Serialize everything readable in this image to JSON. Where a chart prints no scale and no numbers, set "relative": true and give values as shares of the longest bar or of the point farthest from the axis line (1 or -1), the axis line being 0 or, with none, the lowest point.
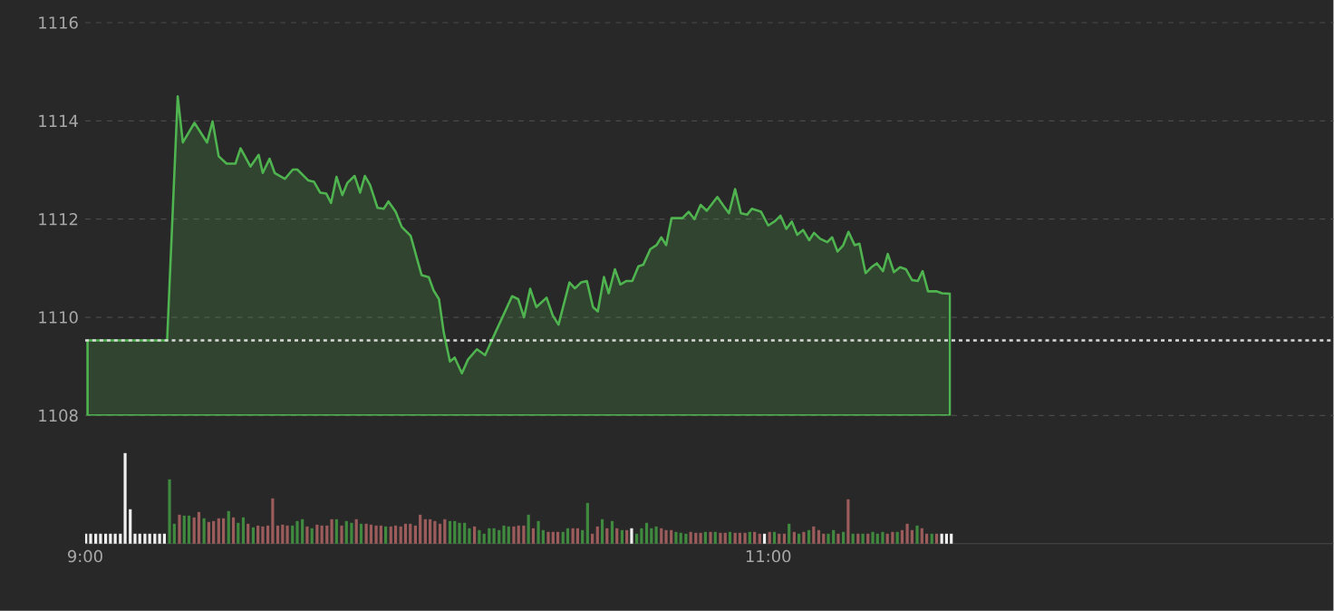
{
  "chart_data": [
    {
      "type": "area",
      "xlim": [
        9,
        12.655
      ],
      "tick_labels": "y",
      "ylim": [
        1108,
        1116
      ],
      "yticks": [
        1108,
        1110,
        1112,
        1114,
        1116
      ],
      "grid": "y",
      "x": [
        9.007,
        9.24,
        9.271,
        9.286,
        9.32,
        9.357,
        9.373,
        9.391,
        9.414,
        9.44,
        9.455,
        9.484,
        9.508,
        9.52,
        9.54,
        9.555,
        9.585,
        9.608,
        9.621,
        9.653,
        9.67,
        9.688,
        9.706,
        9.72,
        9.736,
        9.753,
        9.768,
        9.789,
        9.805,
        9.819,
        9.834,
        9.856,
        9.874,
        9.888,
        9.909,
        9.927,
        9.953,
        9.985,
        10.006,
        10.02,
        10.036,
        10.05,
        10.068,
        10.082,
        10.103,
        10.121,
        10.147,
        10.171,
        10.201,
        10.25,
        10.268,
        10.285,
        10.303,
        10.321,
        10.351,
        10.369,
        10.386,
        10.418,
        10.434,
        10.452,
        10.469,
        10.487,
        10.501,
        10.519,
        10.533,
        10.551,
        10.567,
        10.585,
        10.602,
        10.62,
        10.634,
        10.655,
        10.673,
        10.687,
        10.701,
        10.717,
        10.749,
        10.767,
        10.784,
        10.802,
        10.82,
        10.851,
        10.869,
        10.885,
        10.903,
        10.92,
        10.938,
        10.952,
        10.979,
        11.0,
        11.02,
        11.036,
        11.053,
        11.069,
        11.085,
        11.102,
        11.12,
        11.134,
        11.152,
        11.173,
        11.187,
        11.203,
        11.219,
        11.235,
        11.253,
        11.267,
        11.285,
        11.302,
        11.318,
        11.336,
        11.35,
        11.368,
        11.386,
        11.403,
        11.421,
        11.438,
        11.452,
        11.468,
        11.492,
        11.509,
        11.532
      ],
      "series": [
        {
          "color": "#4fb34f",
          "values": [
            1109.53,
            1109.53,
            1114.5,
            1113.56,
            1113.96,
            1113.56,
            1113.99,
            1113.28,
            1113.13,
            1113.13,
            1113.44,
            1113.07,
            1113.31,
            1112.94,
            1113.23,
            1112.94,
            1112.82,
            1113.01,
            1113.01,
            1112.79,
            1112.76,
            1112.54,
            1112.52,
            1112.33,
            1112.86,
            1112.49,
            1112.74,
            1112.88,
            1112.54,
            1112.88,
            1112.7,
            1112.23,
            1112.21,
            1112.36,
            1112.15,
            1111.84,
            1111.66,
            1110.86,
            1110.82,
            1110.55,
            1110.37,
            1109.69,
            1109.1,
            1109.18,
            1108.86,
            1109.14,
            1109.35,
            1109.23,
            1109.69,
            1110.43,
            1110.37,
            1110.0,
            1110.58,
            1110.21,
            1110.4,
            1110.04,
            1109.85,
            1110.71,
            1110.59,
            1110.71,
            1110.74,
            1110.21,
            1110.12,
            1110.82,
            1110.49,
            1110.98,
            1110.67,
            1110.74,
            1110.74,
            1111.04,
            1111.07,
            1111.39,
            1111.47,
            1111.63,
            1111.47,
            1112.02,
            1112.02,
            1112.15,
            1112.0,
            1112.29,
            1112.17,
            1112.45,
            1112.27,
            1112.12,
            1112.61,
            1112.12,
            1112.09,
            1112.21,
            1112.15,
            1111.87,
            1111.96,
            1112.07,
            1111.8,
            1111.95,
            1111.68,
            1111.78,
            1111.57,
            1111.72,
            1111.6,
            1111.53,
            1111.63,
            1111.34,
            1111.46,
            1111.74,
            1111.47,
            1111.5,
            1110.9,
            1111.02,
            1111.1,
            1110.94,
            1111.29,
            1110.92,
            1111.02,
            1110.98,
            1110.76,
            1110.74,
            1110.94,
            1110.53,
            1110.53,
            1110.49,
            1110.48
          ]
        }
      ],
      "ref_lines": [
        {
          "axis": "y",
          "value": 1109.53,
          "color": "#d9d9d9",
          "line_style": "dotted"
        }
      ]
    },
    {
      "type": "bar",
      "relative": true,
      "tick_labels": "x",
      "xlim": [
        9,
        12.655
      ],
      "xticks": [
        {
          "value": 9,
          "label": "9:00"
        },
        {
          "value": 11,
          "label": "11:00"
        }
      ],
      "x": [
        9.002,
        9.016,
        9.031,
        9.045,
        9.06,
        9.074,
        9.088,
        9.103,
        9.117,
        9.132,
        9.146,
        9.16,
        9.175,
        9.189,
        9.204,
        9.218,
        9.232,
        9.247,
        9.261,
        9.276,
        9.29,
        9.304,
        9.319,
        9.333,
        9.348,
        9.362,
        9.376,
        9.391,
        9.405,
        9.42,
        9.434,
        9.448,
        9.463,
        9.477,
        9.492,
        9.506,
        9.52,
        9.535,
        9.549,
        9.564,
        9.578,
        9.592,
        9.607,
        9.621,
        9.636,
        9.65,
        9.664,
        9.679,
        9.693,
        9.708,
        9.722,
        9.736,
        9.751,
        9.765,
        9.78,
        9.794,
        9.808,
        9.823,
        9.837,
        9.852,
        9.866,
        9.88,
        9.895,
        9.909,
        9.924,
        9.938,
        9.952,
        9.967,
        9.981,
        9.996,
        10.01,
        10.024,
        10.039,
        10.053,
        10.068,
        10.082,
        10.096,
        10.111,
        10.125,
        10.14,
        10.154,
        10.168,
        10.183,
        10.197,
        10.212,
        10.226,
        10.24,
        10.255,
        10.269,
        10.284,
        10.298,
        10.312,
        10.327,
        10.341,
        10.356,
        10.37,
        10.384,
        10.399,
        10.413,
        10.428,
        10.442,
        10.456,
        10.471,
        10.485,
        10.5,
        10.514,
        10.528,
        10.543,
        10.557,
        10.572,
        10.586,
        10.6,
        10.615,
        10.629,
        10.644,
        10.658,
        10.672,
        10.687,
        10.701,
        10.716,
        10.73,
        10.744,
        10.759,
        10.773,
        10.788,
        10.802,
        10.816,
        10.831,
        10.845,
        10.86,
        10.874,
        10.888,
        10.903,
        10.917,
        10.932,
        10.946,
        10.96,
        10.975,
        10.989,
        11.004,
        11.018,
        11.032,
        11.047,
        11.061,
        11.076,
        11.09,
        11.104,
        11.119,
        11.133,
        11.148,
        11.162,
        11.176,
        11.191,
        11.205,
        11.22,
        11.234,
        11.248,
        11.263,
        11.277,
        11.292,
        11.306,
        11.32,
        11.335,
        11.349,
        11.364,
        11.378,
        11.392,
        11.407,
        11.421,
        11.436,
        11.45,
        11.464,
        11.479,
        11.493,
        11.508,
        11.522,
        11.536
      ],
      "values": [
        0.11,
        0.11,
        0.11,
        0.11,
        0.11,
        0.11,
        0.11,
        0.11,
        1,
        0.38,
        0.11,
        0.11,
        0.11,
        0.11,
        0.11,
        0.11,
        0.11,
        0.71,
        0.22,
        0.32,
        0.31,
        0.31,
        0.29,
        0.35,
        0.28,
        0.24,
        0.25,
        0.28,
        0.28,
        0.36,
        0.29,
        0.23,
        0.29,
        0.22,
        0.18,
        0.2,
        0.19,
        0.2,
        0.5,
        0.2,
        0.21,
        0.2,
        0.2,
        0.25,
        0.27,
        0.19,
        0.17,
        0.21,
        0.2,
        0.2,
        0.27,
        0.27,
        0.2,
        0.25,
        0.23,
        0.27,
        0.22,
        0.22,
        0.21,
        0.2,
        0.2,
        0.19,
        0.19,
        0.2,
        0.19,
        0.22,
        0.22,
        0.2,
        0.32,
        0.27,
        0.27,
        0.25,
        0.22,
        0.27,
        0.25,
        0.25,
        0.23,
        0.23,
        0.17,
        0.19,
        0.15,
        0.11,
        0.17,
        0.17,
        0.15,
        0.2,
        0.19,
        0.19,
        0.2,
        0.2,
        0.32,
        0.17,
        0.25,
        0.15,
        0.13,
        0.13,
        0.13,
        0.13,
        0.17,
        0.17,
        0.17,
        0.15,
        0.45,
        0.11,
        0.19,
        0.27,
        0.17,
        0.25,
        0.17,
        0.15,
        0.15,
        0.17,
        0.11,
        0.17,
        0.23,
        0.17,
        0.19,
        0.17,
        0.15,
        0.15,
        0.13,
        0.12,
        0.11,
        0.13,
        0.12,
        0.12,
        0.13,
        0.13,
        0.13,
        0.12,
        0.12,
        0.13,
        0.12,
        0.12,
        0.12,
        0.13,
        0.13,
        0.11,
        0.11,
        0.13,
        0.13,
        0.11,
        0.11,
        0.22,
        0.13,
        0.11,
        0.13,
        0.15,
        0.19,
        0.15,
        0.11,
        0.11,
        0.15,
        0.11,
        0.13,
        0.49,
        0.11,
        0.11,
        0.11,
        0.11,
        0.13,
        0.11,
        0.13,
        0.11,
        0.13,
        0.13,
        0.15,
        0.22,
        0.15,
        0.2,
        0.17,
        0.11,
        0.11,
        0.11,
        0.11,
        0.11,
        0.11
      ],
      "colors": [
        "#f0f0f0",
        "#f0f0f0",
        "#f0f0f0",
        "#f0f0f0",
        "#f0f0f0",
        "#f0f0f0",
        "#f0f0f0",
        "#f0f0f0",
        "#f0f0f0",
        "#f0f0f0",
        "#f0f0f0",
        "#f0f0f0",
        "#f0f0f0",
        "#f0f0f0",
        "#f0f0f0",
        "#f0f0f0",
        "#f0f0f0",
        "#3f8a3f",
        "#3f8a3f",
        "#9c5c5c",
        "#3f8a3f",
        "#3f8a3f",
        "#9c5c5c",
        "#9c5c5c",
        "#3f8a3f",
        "#9c5c5c",
        "#9c5c5c",
        "#9c5c5c",
        "#9c5c5c",
        "#3f8a3f",
        "#9c5c5c",
        "#3f8a3f",
        "#3f8a3f",
        "#9c5c5c",
        "#3f8a3f",
        "#9c5c5c",
        "#9c5c5c",
        "#9c5c5c",
        "#9c5c5c",
        "#9c5c5c",
        "#9c5c5c",
        "#9c5c5c",
        "#3f8a3f",
        "#3f8a3f",
        "#3f8a3f",
        "#9c5c5c",
        "#3f8a3f",
        "#9c5c5c",
        "#9c5c5c",
        "#9c5c5c",
        "#9c5c5c",
        "#3f8a3f",
        "#9c5c5c",
        "#3f8a3f",
        "#3f8a3f",
        "#9c5c5c",
        "#3f8a3f",
        "#9c5c5c",
        "#9c5c5c",
        "#9c5c5c",
        "#9c5c5c",
        "#3f8a3f",
        "#9c5c5c",
        "#9c5c5c",
        "#9c5c5c",
        "#9c5c5c",
        "#9c5c5c",
        "#9c5c5c",
        "#9c5c5c",
        "#9c5c5c",
        "#9c5c5c",
        "#9c5c5c",
        "#9c5c5c",
        "#9c5c5c",
        "#3f8a3f",
        "#3f8a3f",
        "#3f8a3f",
        "#3f8a3f",
        "#3f8a3f",
        "#9c5c5c",
        "#3f8a3f",
        "#3f8a3f",
        "#3f8a3f",
        "#3f8a3f",
        "#3f8a3f",
        "#3f8a3f",
        "#3f8a3f",
        "#9c5c5c",
        "#9c5c5c",
        "#9c5c5c",
        "#3f8a3f",
        "#9c5c5c",
        "#3f8a3f",
        "#3f8a3f",
        "#9c5c5c",
        "#9c5c5c",
        "#9c5c5c",
        "#3f8a3f",
        "#3f8a3f",
        "#9c5c5c",
        "#9c5c5c",
        "#3f8a3f",
        "#3f8a3f",
        "#9c5c5c",
        "#9c5c5c",
        "#3f8a3f",
        "#9c5c5c",
        "#3f8a3f",
        "#9c5c5c",
        "#3f8a3f",
        "#9c5c5c",
        "#f0f0f0",
        "#3f8a3f",
        "#3f8a3f",
        "#3f8a3f",
        "#3f8a3f",
        "#3f8a3f",
        "#9c5c5c",
        "#9c5c5c",
        "#9c5c5c",
        "#3f8a3f",
        "#3f8a3f",
        "#3f8a3f",
        "#9c5c5c",
        "#9c5c5c",
        "#9c5c5c",
        "#3f8a3f",
        "#9c5c5c",
        "#3f8a3f",
        "#9c5c5c",
        "#9c5c5c",
        "#3f8a3f",
        "#9c5c5c",
        "#9c5c5c",
        "#9c5c5c",
        "#3f8a3f",
        "#9c5c5c",
        "#9c5c5c",
        "#f0f0f0",
        "#9c5c5c",
        "#3f8a3f",
        "#9c5c5c",
        "#9c5c5c",
        "#3f8a3f",
        "#9c5c5c",
        "#3f8a3f",
        "#9c5c5c",
        "#3f8a3f",
        "#9c5c5c",
        "#9c5c5c",
        "#9c5c5c",
        "#3f8a3f",
        "#3f8a3f",
        "#9c5c5c",
        "#3f8a3f",
        "#9c5c5c",
        "#3f8a3f",
        "#9c5c5c",
        "#3f8a3f",
        "#9c5c5c",
        "#3f8a3f",
        "#3f8a3f",
        "#3f8a3f",
        "#9c5c5c",
        "#9c5c5c",
        "#3f8a3f",
        "#9c5c5c",
        "#9c5c5c",
        "#9c5c5c",
        "#3f8a3f",
        "#9c5c5c",
        "#9c5c5c",
        "#3f8a3f",
        "#9c5c5c",
        "#f0f0f0",
        "#f0f0f0",
        "#f0f0f0"
      ]
    }
  ]
}
